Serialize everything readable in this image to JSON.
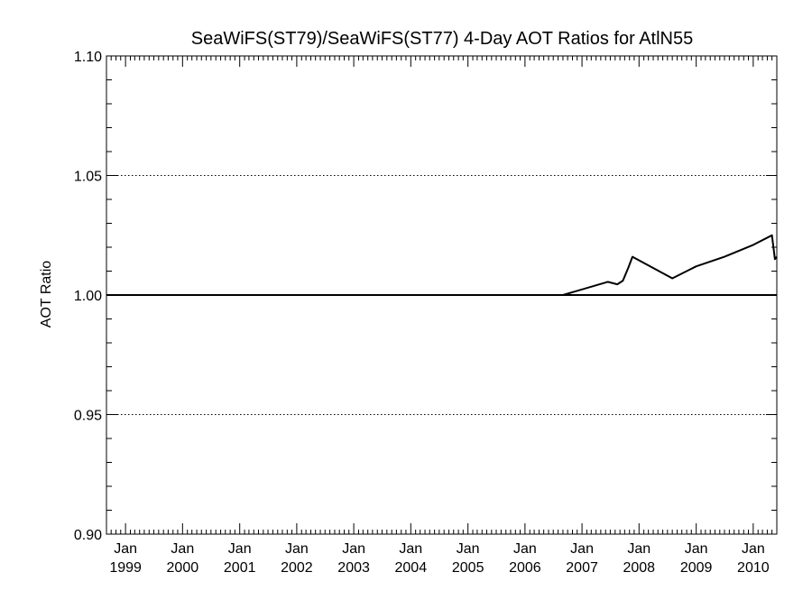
{
  "chart_data": {
    "type": "line",
    "title": "SeaWiFS(ST79)/SeaWiFS(ST77) 4-Day AOT Ratios for AtlN55",
    "xlabel": "",
    "ylabel": "AOT Ratio",
    "xlim": [
      "1998-09-01",
      "2010-06-01"
    ],
    "ylim": [
      0.9,
      1.1
    ],
    "y_ticks": [
      {
        "value": 0.9,
        "label": "0.90"
      },
      {
        "value": 0.95,
        "label": "0.95"
      },
      {
        "value": 1.0,
        "label": "1.00"
      },
      {
        "value": 1.05,
        "label": "1.05"
      },
      {
        "value": 1.1,
        "label": "1.10"
      }
    ],
    "x_ticks": [
      {
        "date": "1999-01-01",
        "month": "Jan",
        "year": "1999"
      },
      {
        "date": "2000-01-01",
        "month": "Jan",
        "year": "2000"
      },
      {
        "date": "2001-01-01",
        "month": "Jan",
        "year": "2001"
      },
      {
        "date": "2002-01-01",
        "month": "Jan",
        "year": "2002"
      },
      {
        "date": "2003-01-01",
        "month": "Jan",
        "year": "2003"
      },
      {
        "date": "2004-01-01",
        "month": "Jan",
        "year": "2004"
      },
      {
        "date": "2005-01-01",
        "month": "Jan",
        "year": "2005"
      },
      {
        "date": "2006-01-01",
        "month": "Jan",
        "year": "2006"
      },
      {
        "date": "2007-01-01",
        "month": "Jan",
        "year": "2007"
      },
      {
        "date": "2008-01-01",
        "month": "Jan",
        "year": "2008"
      },
      {
        "date": "2009-01-01",
        "month": "Jan",
        "year": "2009"
      },
      {
        "date": "2010-01-01",
        "month": "Jan",
        "year": "2010"
      }
    ],
    "dotted_gridlines_y": [
      0.95,
      1.05,
      1.1
    ],
    "reference_line_y": 1.0,
    "grid": "dotted horizontal at major y ticks",
    "legend": "none",
    "series": [
      {
        "x": [
          "1998-09-01",
          "2006-09-01",
          "2007-06-15",
          "2007-08-15",
          "2007-09-20",
          "2007-10-25",
          "2007-11-20",
          "2008-08-01",
          "2009-01-01",
          "2009-07-01",
          "2010-01-01",
          "2010-05-01",
          "2010-05-20",
          "2010-06-01"
        ],
        "y": [
          1.0,
          1.0,
          1.0055,
          1.0045,
          1.006,
          1.0115,
          1.016,
          1.007,
          1.012,
          1.016,
          1.021,
          1.025,
          1.015,
          1.016
        ],
        "color": "#000000"
      }
    ]
  }
}
